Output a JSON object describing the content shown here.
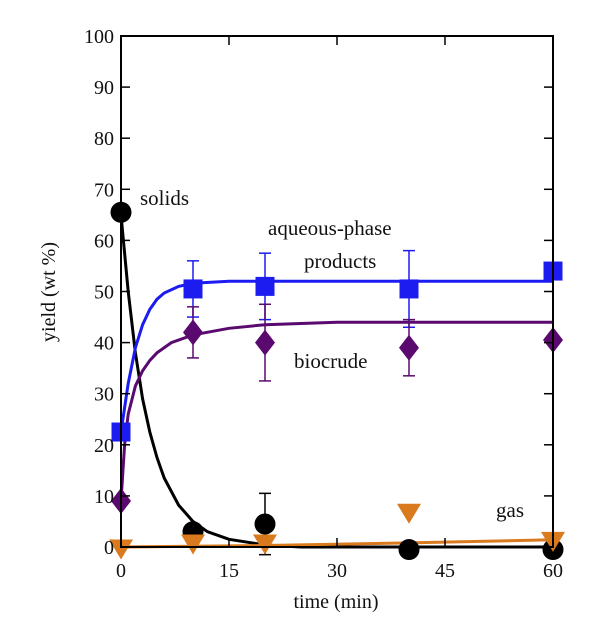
{
  "chart_data": {
    "type": "scatter",
    "xlabel": "time (min)",
    "ylabel": "yield (wt %)",
    "xlim": [
      0,
      60
    ],
    "ylim": [
      0,
      100
    ],
    "xticks": [
      0,
      15,
      30,
      45,
      60
    ],
    "yticks": [
      0,
      10,
      20,
      30,
      40,
      50,
      60,
      70,
      80,
      90,
      100
    ],
    "grid": false,
    "series": [
      {
        "name": "solids",
        "marker": "circle",
        "color": "#000000",
        "x": [
          0,
          10,
          20,
          40,
          60
        ],
        "y": [
          65.5,
          3,
          4.5,
          -0.5,
          -0.5
        ],
        "err": [
          0,
          1.5,
          6,
          0,
          0
        ],
        "fit": [
          [
            0,
            65
          ],
          [
            1,
            50
          ],
          [
            2,
            38
          ],
          [
            3,
            29
          ],
          [
            4,
            22.5
          ],
          [
            5,
            17.5
          ],
          [
            6,
            13.5
          ],
          [
            8,
            8.2
          ],
          [
            10,
            5
          ],
          [
            12,
            3
          ],
          [
            15,
            1.5
          ],
          [
            20,
            0.4
          ],
          [
            25,
            0
          ],
          [
            30,
            0
          ],
          [
            40,
            0
          ],
          [
            50,
            0
          ],
          [
            60,
            0
          ]
        ]
      },
      {
        "name": "aqueous-phase products",
        "marker": "square",
        "color": "#1c1cf0",
        "x": [
          0,
          10,
          20,
          40,
          60
        ],
        "y": [
          22.5,
          50.5,
          51,
          50.5,
          54
        ],
        "err": [
          0,
          5.5,
          6.5,
          7.5,
          0
        ],
        "fit": [
          [
            0,
            22.5
          ],
          [
            1,
            32
          ],
          [
            2,
            39
          ],
          [
            3,
            43.5
          ],
          [
            4,
            46.5
          ],
          [
            5,
            48.5
          ],
          [
            6,
            49.7
          ],
          [
            8,
            51
          ],
          [
            10,
            51.6
          ],
          [
            15,
            52
          ],
          [
            20,
            52
          ],
          [
            40,
            52
          ],
          [
            60,
            52
          ]
        ]
      },
      {
        "name": "biocrude",
        "marker": "diamond",
        "color": "#5a0a6e",
        "x": [
          0,
          10,
          20,
          40,
          60
        ],
        "y": [
          9,
          42,
          40,
          39,
          40.5
        ],
        "err": [
          0,
          5,
          7.5,
          5.5,
          0
        ],
        "fit": [
          [
            0,
            9
          ],
          [
            0.5,
            20
          ],
          [
            1,
            26
          ],
          [
            2,
            31.5
          ],
          [
            3,
            34.5
          ],
          [
            4,
            36.5
          ],
          [
            5,
            38
          ],
          [
            7,
            40
          ],
          [
            10,
            41.5
          ],
          [
            15,
            42.8
          ],
          [
            20,
            43.5
          ],
          [
            30,
            44
          ],
          [
            60,
            44
          ]
        ]
      },
      {
        "name": "gas",
        "marker": "triangle-down",
        "color": "#d97a1e",
        "x": [
          0,
          10,
          20,
          40,
          60
        ],
        "y": [
          -0.5,
          0.5,
          0.5,
          6.5,
          1
        ],
        "err": [
          0,
          0,
          0,
          0,
          0
        ],
        "fit": [
          [
            0,
            0
          ],
          [
            20,
            0.3
          ],
          [
            40,
            0.8
          ],
          [
            60,
            1.4
          ]
        ]
      }
    ],
    "annotations": {
      "solids": "solids",
      "aqueous_line1": "aqueous-phase",
      "aqueous_line2": "products",
      "biocrude": "biocrude",
      "gas": "gas"
    }
  }
}
